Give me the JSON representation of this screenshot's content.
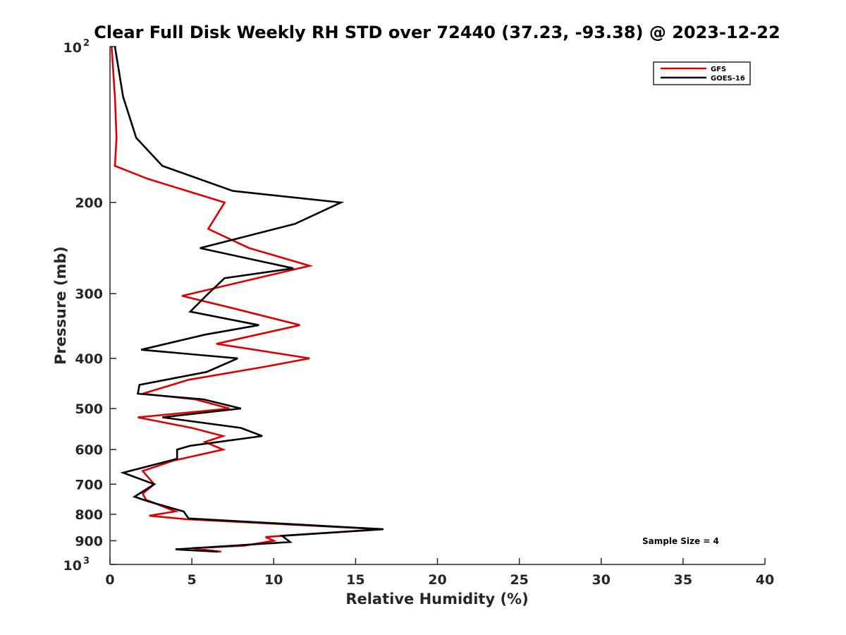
{
  "chart_data": {
    "type": "line",
    "title": "Clear Full Disk Weekly RH STD over 72440 (37.23, -93.38) @ 2023-12-22",
    "xlabel": "Relative Humidity (%)",
    "ylabel": "Pressure (mb)",
    "xlim": [
      0,
      40
    ],
    "ylim": [
      100,
      1000
    ],
    "y_scale": "log",
    "y_reversed": true,
    "grid": false,
    "legend_position": "top-right",
    "x_ticks": [
      0,
      5,
      10,
      15,
      20,
      25,
      30,
      35,
      40
    ],
    "x_tick_labels": [
      "0",
      "5",
      "10",
      "15",
      "20",
      "25",
      "30",
      "35",
      "40"
    ],
    "y_ticks": [
      100,
      200,
      300,
      400,
      500,
      600,
      700,
      800,
      900,
      1000
    ],
    "y_tick_labels": [
      {
        "base": "10",
        "exp": "2"
      },
      {
        "base": "200",
        "exp": ""
      },
      {
        "base": "300",
        "exp": ""
      },
      {
        "base": "400",
        "exp": ""
      },
      {
        "base": "500",
        "exp": ""
      },
      {
        "base": "600",
        "exp": ""
      },
      {
        "base": "700",
        "exp": ""
      },
      {
        "base": "800",
        "exp": ""
      },
      {
        "base": "900",
        "exp": ""
      },
      {
        "base": "10",
        "exp": "3"
      }
    ],
    "annotation": "Sample Size = 4",
    "series": [
      {
        "name": "GFS",
        "color": "#dd0000",
        "points": [
          [
            0.1,
            100
          ],
          [
            0.3,
            125
          ],
          [
            0.4,
            150
          ],
          [
            0.3,
            170
          ],
          [
            2.3,
            180
          ],
          [
            7.0,
            200
          ],
          [
            6.0,
            225
          ],
          [
            8.5,
            245
          ],
          [
            12.2,
            265
          ],
          [
            4.4,
            303
          ],
          [
            7.5,
            320
          ],
          [
            11.6,
            345
          ],
          [
            6.5,
            375
          ],
          [
            12.2,
            400
          ],
          [
            9.5,
            415
          ],
          [
            4.8,
            440
          ],
          [
            2.0,
            468
          ],
          [
            5.2,
            480
          ],
          [
            7.3,
            500
          ],
          [
            1.7,
            520
          ],
          [
            5.0,
            545
          ],
          [
            6.9,
            565
          ],
          [
            5.8,
            580
          ],
          [
            6.9,
            600
          ],
          [
            3.9,
            630
          ],
          [
            2.0,
            660
          ],
          [
            2.7,
            700
          ],
          [
            2.0,
            730
          ],
          [
            2.2,
            750
          ],
          [
            4.0,
            790
          ],
          [
            2.4,
            805
          ],
          [
            4.7,
            818
          ],
          [
            16.6,
            855
          ],
          [
            9.5,
            885
          ],
          [
            10.0,
            900
          ],
          [
            8.2,
            920
          ],
          [
            5.0,
            930
          ],
          [
            6.8,
            945
          ]
        ]
      },
      {
        "name": "GOES-16",
        "color": "#000000",
        "points": [
          [
            0.3,
            100
          ],
          [
            0.8,
            125
          ],
          [
            1.6,
            150
          ],
          [
            3.2,
            170
          ],
          [
            7.5,
            190
          ],
          [
            14.1,
            200
          ],
          [
            11.3,
            220
          ],
          [
            5.5,
            245
          ],
          [
            11.2,
            268
          ],
          [
            7.0,
            280
          ],
          [
            6.0,
            300
          ],
          [
            4.9,
            325
          ],
          [
            9.1,
            345
          ],
          [
            5.8,
            360
          ],
          [
            1.9,
            385
          ],
          [
            7.8,
            400
          ],
          [
            5.9,
            425
          ],
          [
            1.8,
            450
          ],
          [
            1.7,
            468
          ],
          [
            5.7,
            480
          ],
          [
            8.0,
            500
          ],
          [
            3.2,
            520
          ],
          [
            8.0,
            545
          ],
          [
            9.3,
            565
          ],
          [
            4.9,
            590
          ],
          [
            4.1,
            600
          ],
          [
            4.1,
            625
          ],
          [
            0.8,
            665
          ],
          [
            2.7,
            700
          ],
          [
            1.5,
            740
          ],
          [
            2.3,
            755
          ],
          [
            4.5,
            790
          ],
          [
            4.8,
            815
          ],
          [
            16.7,
            855
          ],
          [
            10.5,
            880
          ],
          [
            11.0,
            905
          ],
          [
            4.0,
            935
          ],
          [
            6.6,
            945
          ]
        ]
      }
    ]
  }
}
